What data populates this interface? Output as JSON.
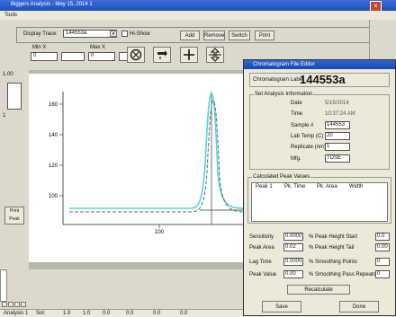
{
  "window": {
    "title": "Biggers Analysis - May 15, 2014 1",
    "close_glyph": "×"
  },
  "menu": {
    "label": "Tools"
  },
  "toolbar": {
    "display_trace_label": "Display Trace:",
    "display_trace_value": "144553a",
    "show_all_label": "Hi-Show",
    "buttons": {
      "add": "Add",
      "remove": "Remove",
      "switch": "Switch",
      "print": "Print"
    },
    "min_label": "Min X",
    "max_label": "Max X",
    "min_value": "0",
    "max_value": "0",
    "min2_value": "",
    "max2_value": ""
  },
  "left": {
    "label_top": "1.00",
    "label_mid": "1",
    "print_button": "Print Peak"
  },
  "plot": {
    "y_ticks": [
      "160",
      "140",
      "120",
      "100"
    ],
    "x_tick": "100"
  },
  "dialog": {
    "title": "Chromatogram File Editor",
    "chrom_label_caption": "Chromatogram Label",
    "chrom_label_value": "144553a",
    "readonly_group": "Set Analysis Information",
    "fields": [
      {
        "label": "Date",
        "value": "5/15/2014"
      },
      {
        "label": "Time",
        "value": "10:37:24 AM"
      },
      {
        "label": "Sample #",
        "value": "144553"
      },
      {
        "label": "Lab Temp (C)",
        "value": "20"
      },
      {
        "label": "Replicate (nm)",
        "value": "1"
      },
      {
        "label": "Mfg.",
        "value": "TDSE"
      }
    ],
    "peak_group": "Calculated Peak Values",
    "peak_cols": [
      "Peak 1",
      "Pk. Time",
      "Pk. Area",
      "Width"
    ],
    "params_left": [
      {
        "label": "Sensitivity",
        "value": "0.0000"
      },
      {
        "label": "Peak Area",
        "value": "0.02"
      },
      {
        "label": "Lag Time",
        "value": "0.0000"
      },
      {
        "label": "Peak Value",
        "value": "0.00"
      }
    ],
    "params_right": [
      {
        "label": "% Peak Height Start",
        "value": "0.0"
      },
      {
        "label": "% Peak Height Tail",
        "value": "0.00"
      },
      {
        "label": "% Smoothing Points",
        "value": "0"
      },
      {
        "label": "% Smoothing Pass Repeats",
        "value": "0"
      }
    ],
    "recalc_button": "Recalculate",
    "save_button": "Save",
    "done_button": "Done"
  },
  "status": {
    "items": [
      "Analysis 1",
      "Sol:",
      "1.0",
      "1.0",
      "0.0",
      "0.0",
      "0.0",
      "0.0"
    ]
  },
  "colors": {
    "trace_cyan": "#4fd8e0",
    "trace_gray": "#6a6a6a"
  }
}
